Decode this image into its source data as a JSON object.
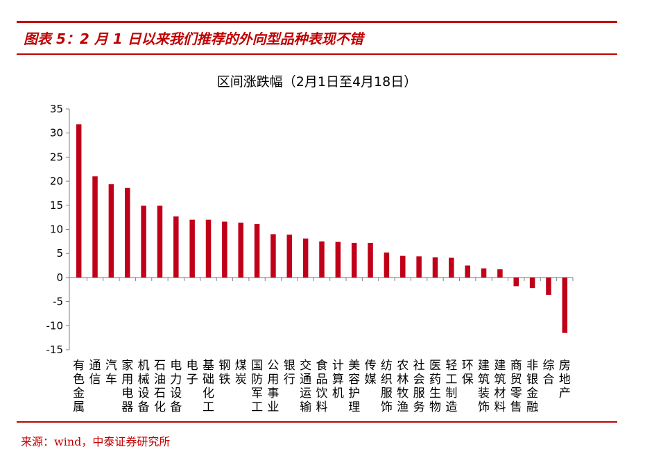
{
  "figure": {
    "title": "图表 5：2 月 1 日以来我们推荐的外向型品种表现不错",
    "source": "来源：wind，中泰证券研究所"
  },
  "colors": {
    "accent": "#c00000",
    "bar": "#c00018",
    "axis": "#7f7f7f",
    "text": "#000000"
  },
  "chart_data": {
    "type": "bar",
    "title": "区间涨跌幅（2月1日至4月18日）",
    "xlabel": "",
    "ylabel": "",
    "ylim": [
      -15,
      35
    ],
    "yticks": [
      35,
      30,
      25,
      20,
      15,
      10,
      5,
      0,
      -5,
      -10,
      -15
    ],
    "grid": false,
    "legend": "none",
    "categories": [
      "有色金属",
      "通信",
      "汽车",
      "家用电器",
      "机械设备",
      "石油石化",
      "电力设备",
      "电子",
      "基础化工",
      "钢铁",
      "煤炭",
      "国防军工",
      "公用事业",
      "银行",
      "交通运输",
      "食品饮料",
      "计算机",
      "美容护理",
      "传媒",
      "纺织服饰",
      "农林牧渔",
      "社会服务",
      "医药生物",
      "轻工制造",
      "环保",
      "建筑装饰",
      "建筑材料",
      "商贸零售",
      "非银金融",
      "综合",
      "房地产"
    ],
    "values": [
      31.8,
      21.0,
      19.4,
      18.6,
      14.9,
      14.9,
      12.7,
      12.0,
      12.0,
      11.6,
      11.4,
      11.1,
      9.0,
      8.9,
      8.1,
      7.5,
      7.4,
      7.2,
      7.2,
      5.2,
      4.5,
      4.4,
      4.2,
      4.1,
      2.5,
      1.9,
      1.7,
      -1.8,
      -2.2,
      -3.6,
      -11.5
    ]
  }
}
